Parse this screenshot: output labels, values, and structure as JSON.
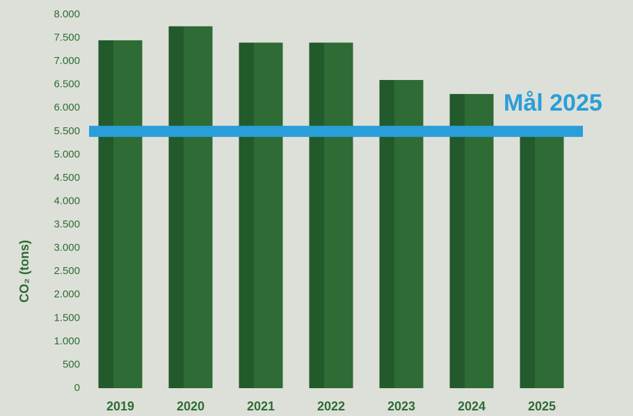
{
  "chart_data": {
    "type": "bar",
    "y_label": "CO₂ (tons)",
    "categories": [
      "2019",
      "2020",
      "2021",
      "2022",
      "2023",
      "2024",
      "2025"
    ],
    "values": [
      7450,
      7750,
      7400,
      7400,
      6600,
      6300,
      5500
    ],
    "color": "#2e6b35",
    "ylim": [
      0,
      8000
    ],
    "yticks": [
      0,
      500,
      {
        "value": 1000,
        "label": "1.000"
      },
      {
        "value": 1500,
        "label": "1.500"
      },
      {
        "value": 2000,
        "label": "2.000"
      },
      {
        "value": 2500,
        "label": "2.500"
      },
      {
        "value": 3000,
        "label": "3.000"
      },
      {
        "value": 3500,
        "label": "3.500"
      },
      {
        "value": 4000,
        "label": "4.000"
      },
      {
        "value": 4500,
        "label": "4.500"
      },
      {
        "value": 5000,
        "label": "5.000"
      },
      {
        "value": 5500,
        "label": "5.500"
      },
      {
        "value": 6000,
        "label": "6.000"
      },
      {
        "value": 6500,
        "label": "6.500"
      },
      {
        "value": 7000,
        "label": "7.000"
      },
      {
        "value": 7500,
        "label": "7.500"
      },
      {
        "value": 8000,
        "label": "8.000"
      }
    ],
    "target": {
      "value": 5500,
      "label": "Mål 2025",
      "color": "#2a9ed8"
    }
  }
}
